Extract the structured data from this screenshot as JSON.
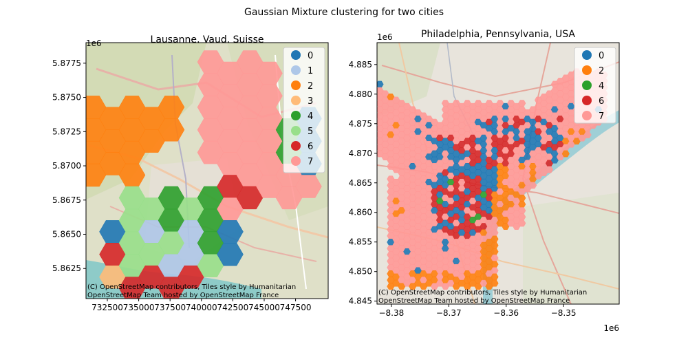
{
  "suptitle": "Gaussian Mixture clustering for two cities",
  "chart_data": [
    {
      "type": "scatter",
      "title": "Lausanne, Vaud, Suisse",
      "xlim": [
        730800,
        750100
      ],
      "ylim": [
        5860300,
        5879000
      ],
      "x_ticks": [
        732500,
        735000,
        737500,
        740000,
        742500,
        745000,
        747500
      ],
      "x_tick_labels": [
        "732500",
        "735000",
        "737500",
        "740000",
        "742500",
        "745000",
        "747500"
      ],
      "y_ticks": [
        5862500,
        5865000,
        5867500,
        5870000,
        5872500,
        5875000,
        5877500
      ],
      "y_tick_labels": [
        "5.8625",
        "5.8650",
        "5.8675",
        "5.8700",
        "5.8725",
        "5.8750",
        "5.8775"
      ],
      "y_offset_label": "1e6",
      "legend_position": "top-right",
      "legend": [
        {
          "label": "0",
          "color": "#1f77b4"
        },
        {
          "label": "1",
          "color": "#aec7e8"
        },
        {
          "label": "2",
          "color": "#ff7f0e"
        },
        {
          "label": "3",
          "color": "#ffbb78"
        },
        {
          "label": "4",
          "color": "#2ca02c"
        },
        {
          "label": "5",
          "color": "#98df8a"
        },
        {
          "label": "6",
          "color": "#d62728"
        },
        {
          "label": "7",
          "color": "#ff9896"
        }
      ],
      "attribution": [
        "(C) OpenStreetMap contributors, Tiles style by Humanitarian",
        "OpenStreetMap Team hosted by OpenStreetMap France"
      ]
    },
    {
      "type": "scatter",
      "title": "Philadelphia, Pennsylvania, USA",
      "xlim": [
        -8382500,
        -8340300
      ],
      "ylim": [
        4844500,
        4888700
      ],
      "x_ticks": [
        -8380000,
        -8370000,
        -8360000,
        -8350000
      ],
      "x_tick_labels": [
        "−8.38",
        "−8.37",
        "−8.36",
        "−8.35"
      ],
      "x_offset_label": "1e6",
      "y_ticks": [
        4845000,
        4850000,
        4855000,
        4860000,
        4865000,
        4870000,
        4875000,
        4880000,
        4885000
      ],
      "y_tick_labels": [
        "4.845",
        "4.850",
        "4.855",
        "4.860",
        "4.865",
        "4.870",
        "4.875",
        "4.880",
        "4.885"
      ],
      "y_offset_label": "1e6",
      "legend_position": "top-right",
      "legend": [
        {
          "label": "0",
          "color": "#1f77b4"
        },
        {
          "label": "2",
          "color": "#ff7f0e"
        },
        {
          "label": "4",
          "color": "#2ca02c"
        },
        {
          "label": "6",
          "color": "#d62728"
        },
        {
          "label": "7",
          "color": "#ff9896"
        }
      ],
      "attribution": [
        "(C) OpenStreetMap contributors, Tiles style by Humanitarian",
        "OpenStreetMap Team hosted by OpenStreetMap France"
      ]
    }
  ]
}
